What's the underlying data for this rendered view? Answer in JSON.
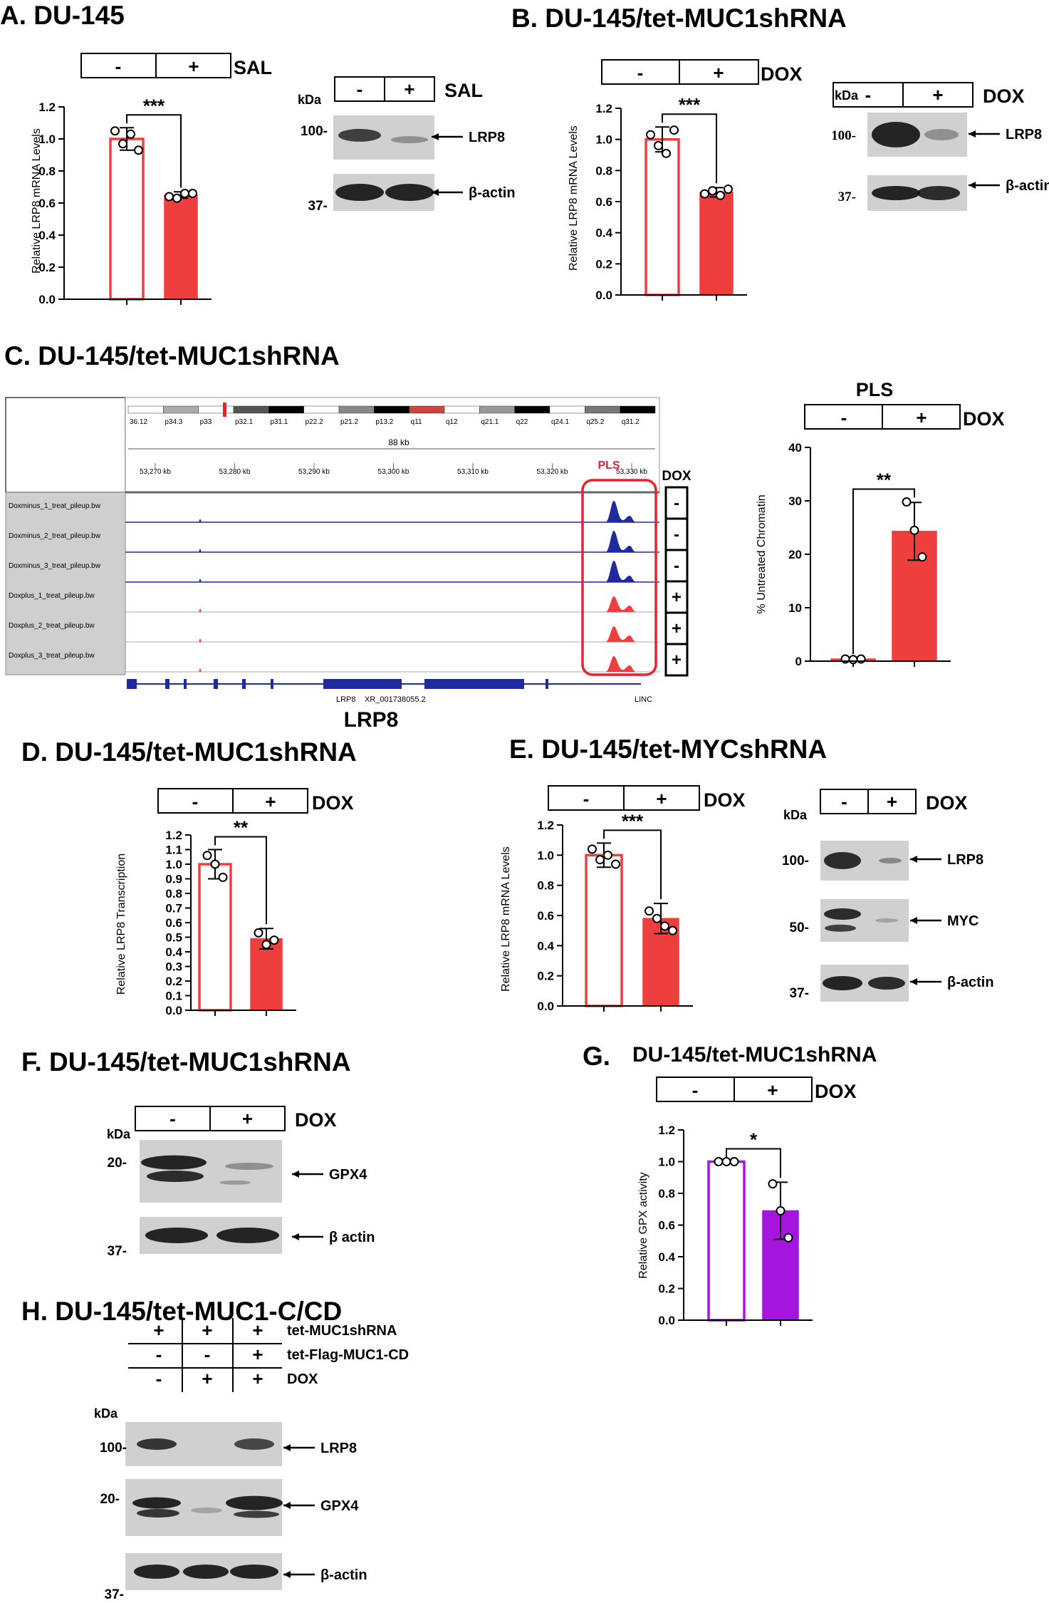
{
  "colors": {
    "red": "#ef3e3e",
    "blue": "#1f2a9c",
    "purple": "#a515dd",
    "blot_bg": "#d0d0d0",
    "blot_band": "#1a1a1a"
  },
  "panels": {
    "A": {
      "title": "A. DU-145",
      "chart_header": [
        "-",
        "+"
      ],
      "chart_treatment": "SAL",
      "blot_header": [
        "-",
        "+"
      ],
      "blot_treatment": "SAL",
      "kda_label": "kDa",
      "blots": [
        {
          "marker": "100-",
          "protein": "LRP8"
        },
        {
          "marker": "37-",
          "protein": "β-actin"
        }
      ]
    },
    "B": {
      "title": "B. DU-145/tet-MUC1shRNA",
      "chart_header": [
        "-",
        "+"
      ],
      "chart_treatment": "DOX",
      "blot_header": [
        "-",
        "+"
      ],
      "blot_treatment": "DOX",
      "kda_label": "kDa",
      "blots": [
        {
          "marker": "100-",
          "protein": "LRP8"
        },
        {
          "marker": "37-",
          "protein": "β-actin"
        }
      ]
    },
    "C": {
      "title": "C. DU-145/tet-MUC1shRNA",
      "ideogram_bands": [
        "36.12",
        "p34.3",
        "p33",
        "p32.1",
        "p31.1",
        "p22.2",
        "p21.2",
        "p13.2",
        "q11",
        "q12",
        "q21.1",
        "q22",
        "q24.1",
        "q25.2",
        "q31.2"
      ],
      "scale_label": "88 kb",
      "coord_ticks": [
        "53,270 kb",
        "53,280 kb",
        "53,290 kb",
        "53,300 kb",
        "53,310 kb",
        "53,320 kb",
        "53,330 kb"
      ],
      "region_label": "PLS",
      "dox_label": "DOX",
      "tracks": [
        {
          "name": "Doxminus_1_treat_pileup.bw",
          "dox": "-"
        },
        {
          "name": "Doxminus_2_treat_pileup.bw",
          "dox": "-"
        },
        {
          "name": "Doxminus_3_treat_pileup.bw",
          "dox": "-"
        },
        {
          "name": "Doxplus_1_treat_pileup.bw",
          "dox": "+"
        },
        {
          "name": "Doxplus_2_treat_pileup.bw",
          "dox": "+"
        },
        {
          "name": "Doxplus_3_treat_pileup.bw",
          "dox": "+"
        }
      ],
      "gene_labels": [
        "LRP8",
        "XR_001738055.2",
        "LINC"
      ],
      "gene_name": "LRP8",
      "chart_title": "PLS",
      "chart_header": [
        "-",
        "+"
      ],
      "chart_treatment": "DOX"
    },
    "D": {
      "title": "D. DU-145/tet-MUC1shRNA",
      "chart_header": [
        "-",
        "+"
      ],
      "chart_treatment": "DOX"
    },
    "E": {
      "title": "E. DU-145/tet-MYCshRNA",
      "chart_header": [
        "-",
        "+"
      ],
      "chart_treatment": "DOX",
      "blot_header": [
        "-",
        "+"
      ],
      "blot_treatment": "DOX",
      "kda_label": "kDa",
      "blots": [
        {
          "marker": "100-",
          "protein": "LRP8"
        },
        {
          "marker": "50-",
          "protein": "MYC"
        },
        {
          "marker": "37-",
          "protein": "β-actin"
        }
      ]
    },
    "F": {
      "title": "F. DU-145/tet-MUC1shRNA",
      "blot_header": [
        "-",
        "+"
      ],
      "blot_treatment": "DOX",
      "kda_label": "kDa",
      "blots": [
        {
          "marker": "20-",
          "protein": "GPX4"
        },
        {
          "marker": "37-",
          "protein": "β actin"
        }
      ]
    },
    "G": {
      "title": "G.",
      "subtitle": "DU-145/tet-MUC1shRNA",
      "chart_header": [
        "-",
        "+"
      ],
      "chart_treatment": "DOX"
    },
    "H": {
      "title": "H. DU-145/tet-MUC1-C/CD",
      "matrix": [
        {
          "values": [
            "+",
            "+",
            "+"
          ],
          "label": "tet-MUC1shRNA"
        },
        {
          "values": [
            "-",
            "-",
            "+"
          ],
          "label": "tet-Flag-MUC1-CD"
        },
        {
          "values": [
            "-",
            "+",
            "+"
          ],
          "label": "DOX"
        }
      ],
      "kda_label": "kDa",
      "blots": [
        {
          "marker": "100-",
          "protein": "LRP8"
        },
        {
          "marker": "20-",
          "protein": "GPX4"
        },
        {
          "marker": "37-",
          "protein": "β-actin"
        }
      ]
    }
  },
  "chart_data": [
    {
      "panel": "A",
      "type": "bar",
      "categories": [
        "-",
        "+"
      ],
      "values": [
        1.0,
        0.65
      ],
      "errors": [
        0.07,
        0.02
      ],
      "points": [
        [
          1.05,
          0.97,
          1.03,
          0.93
        ],
        [
          0.64,
          0.63,
          0.66,
          0.66
        ]
      ],
      "ylabel": "Relative LRP8 mRNA Levels",
      "ylim": [
        0,
        1.2
      ],
      "yticks": [
        "0.0",
        "0.2",
        "0.4",
        "0.6",
        "0.8",
        "1.0",
        "1.2"
      ],
      "significance": "***",
      "fill": [
        "none",
        "#ef3e3e"
      ]
    },
    {
      "panel": "B",
      "type": "bar",
      "categories": [
        "-",
        "+"
      ],
      "values": [
        1.0,
        0.66
      ],
      "errors": [
        0.08,
        0.03
      ],
      "points": [
        [
          1.03,
          0.96,
          0.91,
          1.06
        ],
        [
          0.65,
          0.67,
          0.64,
          0.68
        ]
      ],
      "ylabel": "Relative LRP8 mRNA Levels",
      "ylim": [
        0,
        1.2
      ],
      "yticks": [
        "0.0",
        "0.2",
        "0.4",
        "0.6",
        "0.8",
        "1.0",
        "1.2"
      ],
      "significance": "***",
      "fill": [
        "none",
        "#ef3e3e"
      ]
    },
    {
      "panel": "C",
      "type": "bar",
      "categories": [
        "-",
        "+"
      ],
      "values": [
        0.4,
        24.3
      ],
      "errors": [
        0.1,
        5.4
      ],
      "points": [
        [
          0.4,
          0.3,
          0.4
        ],
        [
          29.8,
          24.5,
          19.5
        ]
      ],
      "ylabel": "% Untreated Chromatin",
      "ylim": [
        0,
        40
      ],
      "yticks": [
        "0",
        "10",
        "20",
        "30",
        "40"
      ],
      "significance": "**",
      "fill": [
        "#ef3e3e",
        "#ef3e3e"
      ]
    },
    {
      "panel": "D",
      "type": "bar",
      "categories": [
        "-",
        "+"
      ],
      "values": [
        1.0,
        0.49
      ],
      "errors": [
        0.1,
        0.07
      ],
      "points": [
        [
          1.06,
          1.0,
          0.91
        ],
        [
          0.53,
          0.45,
          0.48
        ]
      ],
      "ylabel": "Relative LRP8 Transcription",
      "ylim": [
        0,
        1.2
      ],
      "yticks": [
        "0.0",
        "0.1",
        "0.2",
        "0.3",
        "0.4",
        "0.5",
        "0.6",
        "0.7",
        "0.8",
        "0.9",
        "1.0",
        "1.1",
        "1.2"
      ],
      "significance": "**",
      "fill": [
        "none",
        "#ef3e3e"
      ]
    },
    {
      "panel": "E",
      "type": "bar",
      "categories": [
        "-",
        "+"
      ],
      "values": [
        1.0,
        0.58
      ],
      "errors": [
        0.08,
        0.1
      ],
      "points": [
        [
          1.04,
          0.97,
          1.0,
          0.94
        ],
        [
          0.63,
          0.58,
          0.53,
          0.5
        ]
      ],
      "ylabel": "Relative LRP8 mRNA Levels",
      "ylim": [
        0,
        1.2
      ],
      "yticks": [
        "0.0",
        "0.2",
        "0.4",
        "0.6",
        "0.8",
        "1.0",
        "1.2"
      ],
      "significance": "***",
      "fill": [
        "none",
        "#ef3e3e"
      ]
    },
    {
      "panel": "G",
      "type": "bar",
      "categories": [
        "-",
        "+"
      ],
      "values": [
        1.0,
        0.69
      ],
      "errors": [
        0.0,
        0.18
      ],
      "points": [
        [
          1.0,
          1.0,
          1.0
        ],
        [
          0.86,
          0.69,
          0.52
        ]
      ],
      "ylabel": "Relative GPX activity",
      "ylim": [
        0,
        1.2
      ],
      "yticks": [
        "0.0",
        "0.2",
        "0.4",
        "0.6",
        "0.8",
        "1.0",
        "1.2"
      ],
      "significance": "*",
      "fill": [
        "none",
        "#a515dd"
      ]
    }
  ]
}
